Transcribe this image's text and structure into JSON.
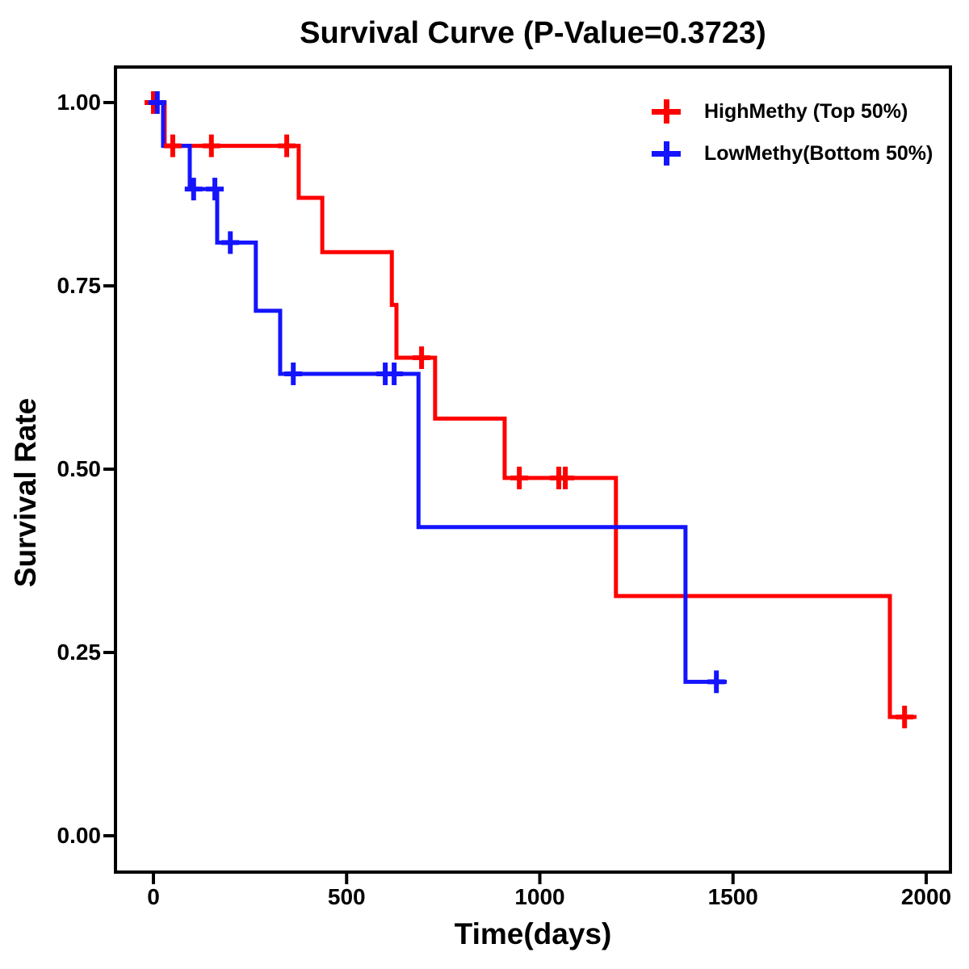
{
  "chart_data": {
    "type": "line",
    "subtype": "kaplan_meier_step_survival",
    "title": "Survival Curve (P-Value=0.3723)",
    "p_value": "0.3723",
    "xlabel": "Time(days)",
    "ylabel": "Survival Rate",
    "xlim": [
      0,
      2000
    ],
    "ylim": [
      0.0,
      1.0
    ],
    "x_ticks": [
      0,
      500,
      1000,
      1500,
      2000
    ],
    "x_tick_labels": [
      "0",
      "500",
      "1000",
      "1500",
      "2000"
    ],
    "y_ticks": [
      1.0,
      0.75,
      0.5,
      0.25,
      0.0
    ],
    "y_tick_labels": [
      "1.00",
      "0.75",
      "0.50",
      "0.25",
      "0.00"
    ],
    "grid": false,
    "legend_position": "top-right-inside",
    "series": [
      {
        "name": "HighMethy (Top 50%)",
        "color": "#ff0000",
        "start": {
          "t": 0,
          "s": 1.0
        },
        "drops": [
          [
            29,
            0.941
          ],
          [
            376,
            0.87
          ],
          [
            437,
            0.796
          ],
          [
            617,
            0.724
          ],
          [
            629,
            0.652
          ],
          [
            729,
            0.569
          ],
          [
            909,
            0.488
          ],
          [
            1197,
            0.327
          ],
          [
            1906,
            0.162
          ]
        ],
        "end_time": 1975,
        "censor_marks": [
          [
            0,
            1.0
          ],
          [
            50,
            0.941
          ],
          [
            150,
            0.941
          ],
          [
            345,
            0.941
          ],
          [
            694,
            0.652
          ],
          [
            947,
            0.488
          ],
          [
            1049,
            0.488
          ],
          [
            1066,
            0.488
          ],
          [
            1944,
            0.162
          ]
        ]
      },
      {
        "name": "LowMethy(Bottom 50%)",
        "color": "#1414ff",
        "start": {
          "t": 0,
          "s": 1.0
        },
        "drops": [
          [
            25,
            0.941
          ],
          [
            94,
            0.882
          ],
          [
            165,
            0.809
          ],
          [
            265,
            0.716
          ],
          [
            328,
            0.63
          ],
          [
            686,
            0.421
          ],
          [
            1377,
            0.21
          ]
        ],
        "end_time": 1484,
        "censor_marks": [
          [
            10,
            1.0
          ],
          [
            104,
            0.882
          ],
          [
            159,
            0.882
          ],
          [
            199,
            0.809
          ],
          [
            362,
            0.63
          ],
          [
            600,
            0.63
          ],
          [
            623,
            0.63
          ],
          [
            1457,
            0.21
          ]
        ]
      }
    ]
  }
}
